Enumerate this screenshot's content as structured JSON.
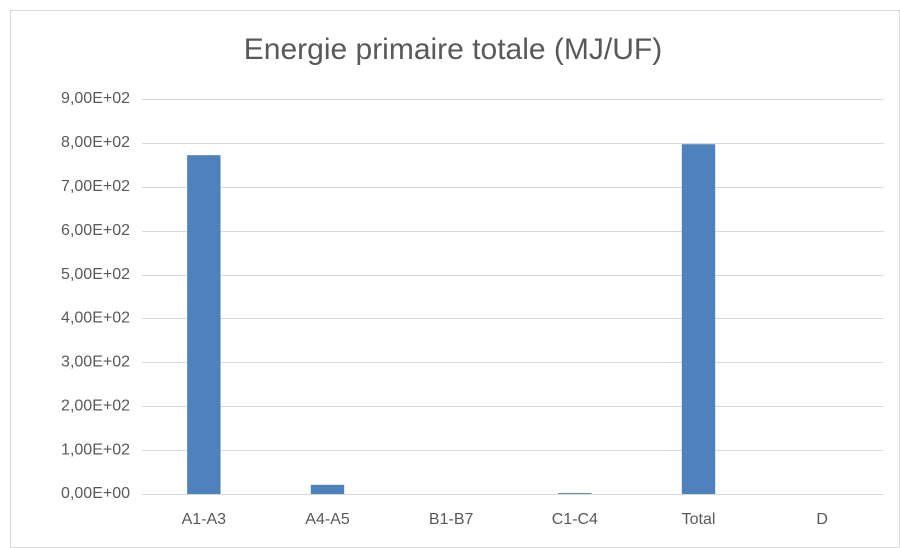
{
  "chart_data": {
    "type": "bar",
    "title": "Energie primaire totale (MJ/UF)",
    "categories": [
      "A1-A3",
      "A4-A5",
      "B1-B7",
      "C1-C4",
      "Total",
      "D"
    ],
    "values": [
      772,
      21,
      0,
      2,
      797,
      0
    ],
    "color": "#4f81bd",
    "ylim": [
      0,
      900
    ],
    "yticks": [
      {
        "value": 0,
        "label": "0,00E+00"
      },
      {
        "value": 100,
        "label": "1,00E+02"
      },
      {
        "value": 200,
        "label": "2,00E+02"
      },
      {
        "value": 300,
        "label": "3,00E+02"
      },
      {
        "value": 400,
        "label": "4,00E+02"
      },
      {
        "value": 500,
        "label": "5,00E+02"
      },
      {
        "value": 600,
        "label": "6,00E+02"
      },
      {
        "value": 700,
        "label": "7,00E+02"
      },
      {
        "value": 800,
        "label": "8,00E+02"
      },
      {
        "value": 900,
        "label": "9,00E+02"
      }
    ],
    "grid": true
  }
}
